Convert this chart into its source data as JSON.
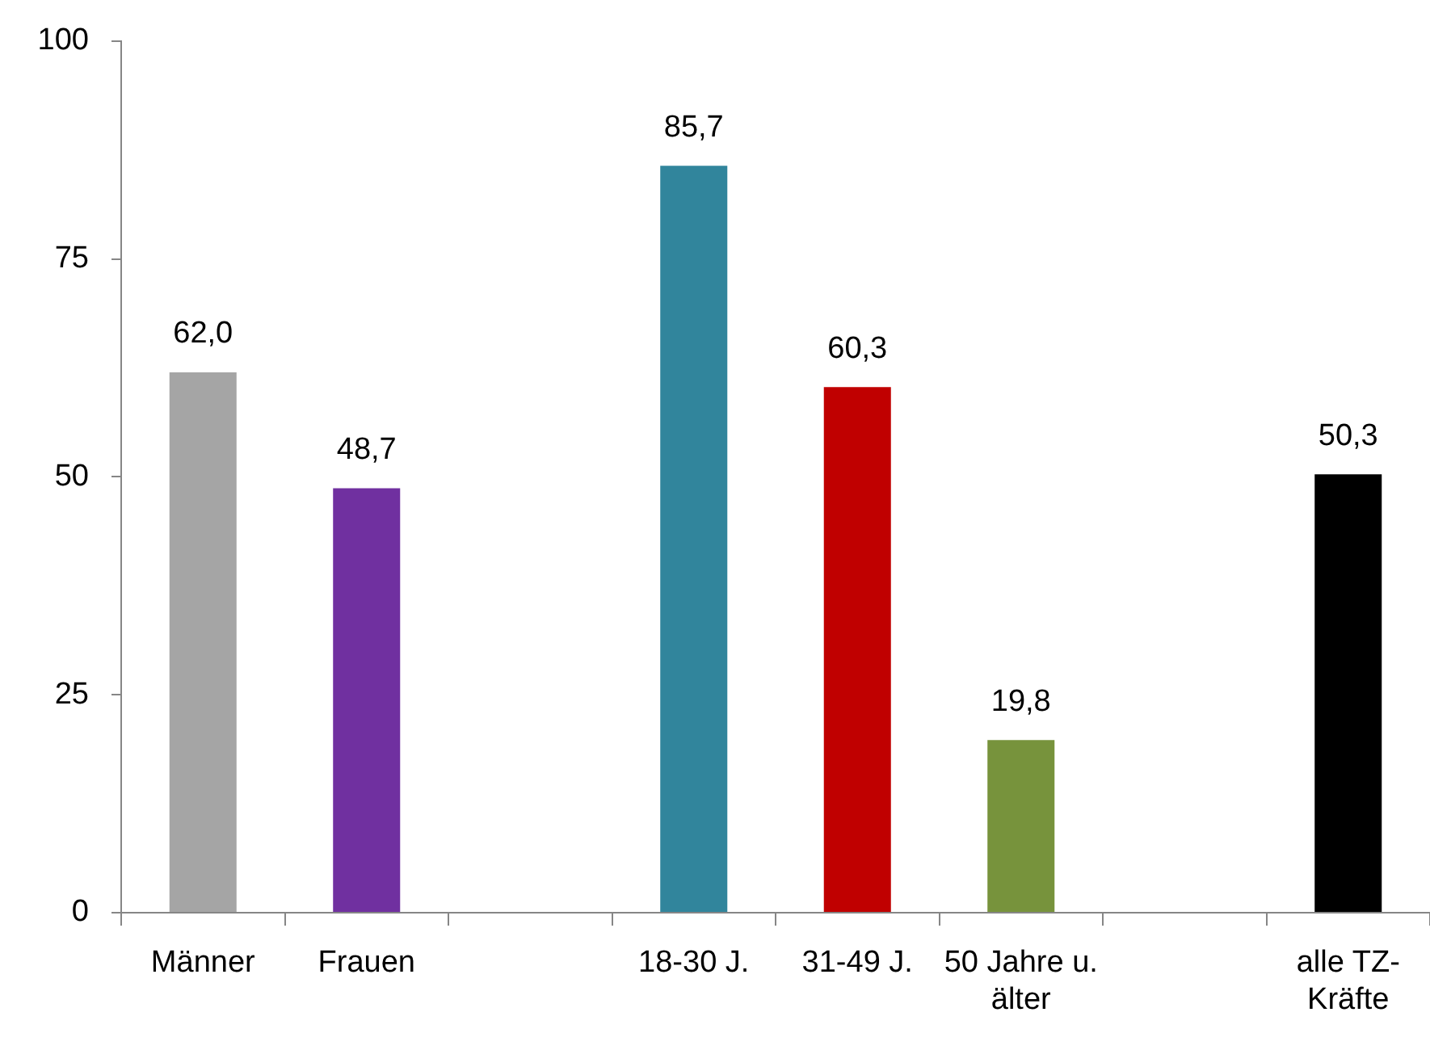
{
  "chart_data": {
    "type": "bar",
    "categories": [
      "Männer",
      "Frauen",
      null,
      "18-30 J.",
      "31-49 J.",
      "50 Jahre u. älter",
      null,
      "alle TZ-Kräfte"
    ],
    "values": [
      62.0,
      48.7,
      null,
      85.7,
      60.3,
      19.8,
      null,
      50.3
    ],
    "colors": [
      "#a5a5a5",
      "#7030a0",
      null,
      "#31859c",
      "#c00000",
      "#77933c",
      null,
      "#000000"
    ],
    "value_labels": [
      "62,0",
      "48,7",
      null,
      "85,7",
      "60,3",
      "19,8",
      null,
      "50,3"
    ],
    "ylim": [
      0,
      100
    ],
    "yticks": [
      0,
      25,
      50,
      75,
      100
    ]
  }
}
